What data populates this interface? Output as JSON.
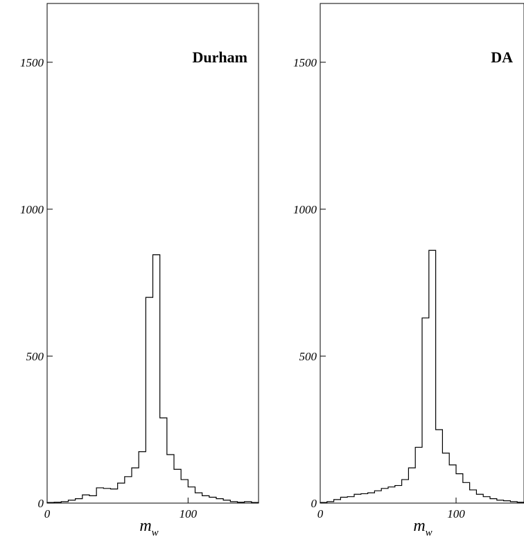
{
  "chart_data": [
    {
      "type": "histogram",
      "title": "Durham",
      "xlabel": "m",
      "xlabel_subscript": "w",
      "xlim": [
        0,
        150
      ],
      "ylim": [
        0,
        1700
      ],
      "xticks": [
        0,
        100
      ],
      "yticks": [
        0,
        500,
        1000,
        1500
      ],
      "bin_edges": [
        0,
        5,
        10,
        15,
        20,
        25,
        30,
        35,
        40,
        45,
        50,
        55,
        60,
        65,
        70,
        75,
        80,
        85,
        90,
        95,
        100,
        105,
        110,
        115,
        120,
        125,
        130,
        135,
        140,
        145,
        150
      ],
      "values": [
        2,
        3,
        5,
        10,
        15,
        28,
        25,
        52,
        50,
        48,
        68,
        90,
        120,
        175,
        700,
        845,
        290,
        165,
        115,
        80,
        55,
        35,
        25,
        20,
        15,
        10,
        5,
        3,
        5,
        2
      ]
    },
    {
      "type": "histogram",
      "title": "DA",
      "xlabel": "m",
      "xlabel_subscript": "w",
      "xlim": [
        0,
        150
      ],
      "ylim": [
        0,
        1700
      ],
      "xticks": [
        0,
        100
      ],
      "yticks": [
        0,
        500,
        1000,
        1500
      ],
      "bin_edges": [
        0,
        5,
        10,
        15,
        20,
        25,
        30,
        35,
        40,
        45,
        50,
        55,
        60,
        65,
        70,
        75,
        80,
        85,
        90,
        95,
        100,
        105,
        110,
        115,
        120,
        125,
        130,
        135,
        140,
        145,
        150
      ],
      "values": [
        2,
        5,
        12,
        20,
        22,
        30,
        32,
        35,
        42,
        50,
        55,
        60,
        80,
        120,
        190,
        630,
        860,
        250,
        170,
        130,
        100,
        70,
        45,
        30,
        22,
        15,
        10,
        8,
        5,
        3
      ]
    }
  ]
}
